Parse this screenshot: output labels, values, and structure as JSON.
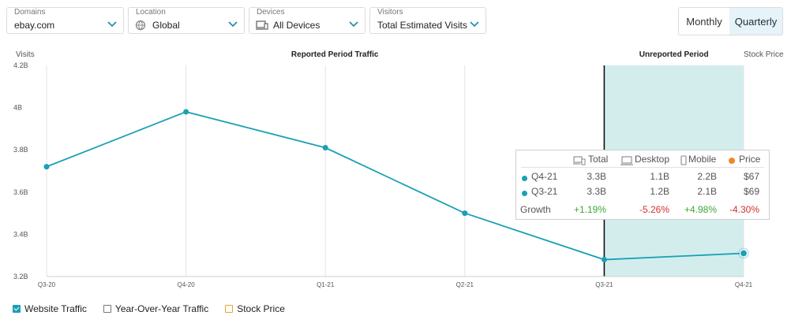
{
  "filters": {
    "domains": {
      "label": "Domains",
      "value": "ebay.com"
    },
    "location": {
      "label": "Location",
      "value": "Global",
      "icon": "globe-icon"
    },
    "devices": {
      "label": "Devices",
      "value": "All Devices",
      "icon": "devices-icon"
    },
    "visitors": {
      "label": "Visitors",
      "value": "Total Estimated Visits"
    }
  },
  "granularity": {
    "monthly": "Monthly",
    "quarterly": "Quarterly",
    "selected": "Quarterly"
  },
  "chart_data": {
    "type": "line",
    "ylabel": "Visits",
    "y2label": "Stock Price",
    "reported_label": "Reported Period Traffic",
    "unreported_label": "Unreported Period",
    "categories": [
      "Q3-20",
      "Q4-20",
      "Q1-21",
      "Q2-21",
      "Q3-21",
      "Q4-21"
    ],
    "series": [
      {
        "values": [
          3.72,
          3.98,
          3.81,
          3.5,
          3.28,
          3.31
        ]
      }
    ],
    "y_ticks": [
      3.2,
      3.4,
      3.6,
      3.8,
      4.0,
      4.2
    ],
    "y_tick_labels": [
      "3.2B",
      "3.4B",
      "3.6B",
      "3.8B",
      "4B",
      "4.2B"
    ],
    "ylim": [
      3.2,
      4.2
    ],
    "unreported_range": [
      "Q3-21",
      "Q4-21"
    ],
    "line_color": "#1aa0b4",
    "shade_color": "#d3eded",
    "grid": "vertical"
  },
  "tooltip": {
    "headers": {
      "total": "Total",
      "desktop": "Desktop",
      "mobile": "Mobile",
      "price": "Price"
    },
    "rows": [
      {
        "label": "Q4-21",
        "total": "3.3B",
        "desktop": "1.1B",
        "mobile": "2.2B",
        "price": "$67"
      },
      {
        "label": "Q3-21",
        "total": "3.3B",
        "desktop": "1.2B",
        "mobile": "2.1B",
        "price": "$69"
      }
    ],
    "growth": {
      "label": "Growth",
      "total": "+1.19%",
      "desktop": "-5.26%",
      "mobile": "+4.98%",
      "price": "-4.30%"
    },
    "colors": {
      "positive": "#3aa935",
      "negative": "#d0312d",
      "price_dot": "#f08a24"
    }
  },
  "legend": {
    "website": {
      "label": "Website Traffic",
      "checked": true
    },
    "yoy": {
      "label": "Year-Over-Year Traffic",
      "checked": false
    },
    "stock": {
      "label": "Stock Price",
      "checked": false
    }
  }
}
